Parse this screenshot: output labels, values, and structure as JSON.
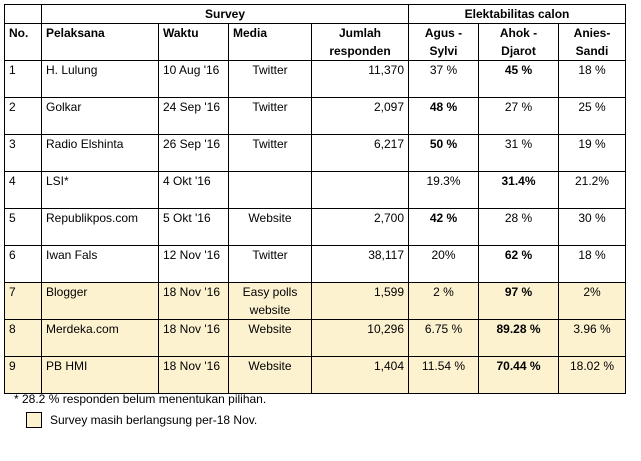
{
  "table": {
    "group_headers": {
      "survey": "Survey",
      "elektabilitas": "Elektabilitas calon"
    },
    "columns": {
      "no": "No.",
      "pelaksana": "Pelaksana",
      "waktu": "Waktu",
      "media": "Media",
      "jumlah": "Jumlah responden",
      "agus": "Agus - Sylvi",
      "ahok": "Ahok - Djarot",
      "anies": "Anies-Sandi"
    },
    "rows": [
      {
        "no": "1",
        "pelaksana": "H. Lulung",
        "waktu": "10 Aug '16",
        "media": "Twitter",
        "jumlah": "11,370",
        "agus": "37 %",
        "ahok": "45 %",
        "anies": "18 %",
        "winner": "ahok",
        "ongoing": false
      },
      {
        "no": "2",
        "pelaksana": "Golkar",
        "waktu": "24 Sep '16",
        "media": "Twitter",
        "jumlah": "2,097",
        "agus": "48 %",
        "ahok": "27 %",
        "anies": "25 %",
        "winner": "agus",
        "ongoing": false
      },
      {
        "no": "3",
        "pelaksana": "Radio Elshinta",
        "waktu": "26 Sep '16",
        "media": "Twitter",
        "jumlah": "6,217",
        "agus": "50 %",
        "ahok": "31 %",
        "anies": "19 %",
        "winner": "agus",
        "ongoing": false
      },
      {
        "no": "4",
        "pelaksana": "LSI*",
        "waktu": "4 Okt '16",
        "media": "",
        "jumlah": "",
        "agus": "19.3%",
        "ahok": "31.4%",
        "anies": "21.2%",
        "winner": "ahok",
        "ongoing": false
      },
      {
        "no": "5",
        "pelaksana": "Republikpos.com",
        "waktu": "5 Okt '16",
        "media": "Website",
        "jumlah": "2,700",
        "agus": "42 %",
        "ahok": "28 %",
        "anies": "30 %",
        "winner": "agus",
        "ongoing": false
      },
      {
        "no": "6",
        "pelaksana": "Iwan Fals",
        "waktu": "12 Nov '16",
        "media": "Twitter",
        "jumlah": "38,117",
        "agus": "20%",
        "ahok": "62 %",
        "anies": "18 %",
        "winner": "ahok",
        "ongoing": false
      },
      {
        "no": "7",
        "pelaksana": "Blogger",
        "waktu": "18 Nov '16",
        "media": "Easy polls website",
        "jumlah": "1,599",
        "agus": "2 %",
        "ahok": "97 %",
        "anies": "2%",
        "winner": "ahok",
        "ongoing": true
      },
      {
        "no": "8",
        "pelaksana": "Merdeka.com",
        "waktu": "18 Nov '16",
        "media": "Website",
        "jumlah": "10,296",
        "agus": "6.75 %",
        "ahok": "89.28 %",
        "anies": "3.96 %",
        "winner": "ahok",
        "ongoing": true
      },
      {
        "no": "9",
        "pelaksana": "PB HMI",
        "waktu": "18 Nov '16",
        "media": "Website",
        "jumlah": "1,404",
        "agus": "11.54 %",
        "ahok": "70.44 %",
        "anies": "18.02 %",
        "winner": "ahok",
        "ongoing": true
      }
    ]
  },
  "footnote": "* 28.2 % responden belum menentukan pilihan.",
  "legend": {
    "label": "Survey masih berlangsung per-18 Nov.",
    "color": "#fdf2d0"
  }
}
